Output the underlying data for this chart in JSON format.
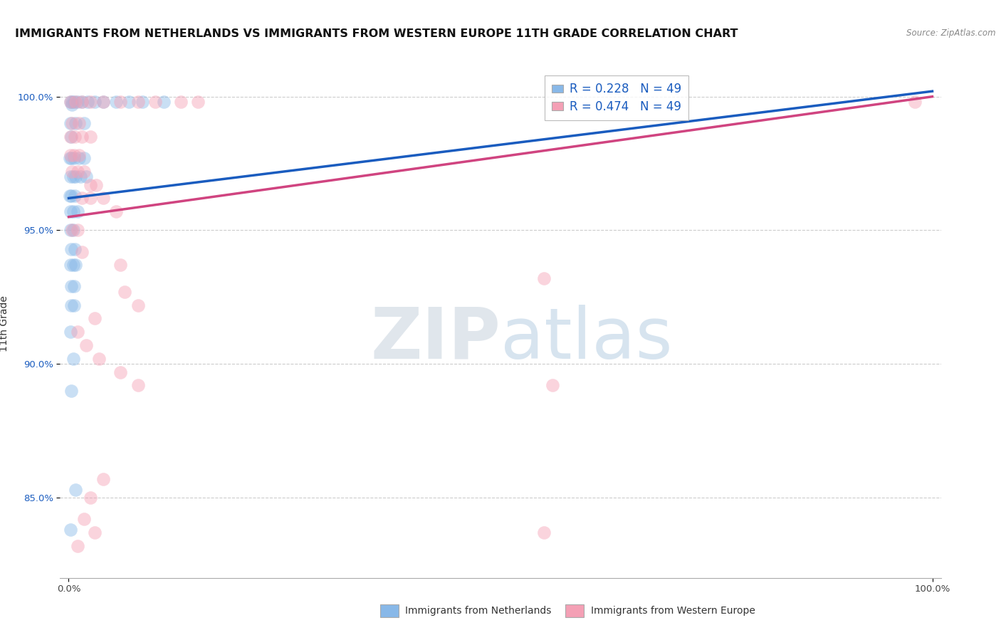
{
  "title": "IMMIGRANTS FROM NETHERLANDS VS IMMIGRANTS FROM WESTERN EUROPE 11TH GRADE CORRELATION CHART",
  "source_text": "Source: ZipAtlas.com",
  "ylabel": "11th Grade",
  "xlim": [
    -0.01,
    1.01
  ],
  "ylim": [
    0.82,
    1.01
  ],
  "x_ticks": [
    0.0,
    1.0
  ],
  "x_tick_labels": [
    "0.0%",
    "100.0%"
  ],
  "y_ticks": [
    0.85,
    0.9,
    0.95,
    1.0
  ],
  "y_tick_labels": [
    "85.0%",
    "90.0%",
    "95.0%",
    "100.0%"
  ],
  "legend_blue_label": "Immigrants from Netherlands",
  "legend_pink_label": "Immigrants from Western Europe",
  "R_blue": 0.228,
  "R_pink": 0.474,
  "N": 49,
  "blue_color": "#88b8e8",
  "pink_color": "#f4a0b5",
  "blue_line_color": "#1a5cbf",
  "pink_line_color": "#d04480",
  "blue_scatter": [
    [
      0.002,
      0.998
    ],
    [
      0.004,
      0.998
    ],
    [
      0.006,
      0.998
    ],
    [
      0.01,
      0.998
    ],
    [
      0.015,
      0.998
    ],
    [
      0.022,
      0.998
    ],
    [
      0.03,
      0.998
    ],
    [
      0.04,
      0.998
    ],
    [
      0.055,
      0.998
    ],
    [
      0.07,
      0.998
    ],
    [
      0.085,
      0.998
    ],
    [
      0.11,
      0.998
    ],
    [
      0.002,
      0.99
    ],
    [
      0.008,
      0.99
    ],
    [
      0.018,
      0.99
    ],
    [
      0.001,
      0.977
    ],
    [
      0.003,
      0.977
    ],
    [
      0.006,
      0.977
    ],
    [
      0.012,
      0.977
    ],
    [
      0.018,
      0.977
    ],
    [
      0.002,
      0.97
    ],
    [
      0.005,
      0.97
    ],
    [
      0.008,
      0.97
    ],
    [
      0.014,
      0.97
    ],
    [
      0.02,
      0.97
    ],
    [
      0.001,
      0.963
    ],
    [
      0.003,
      0.963
    ],
    [
      0.007,
      0.963
    ],
    [
      0.002,
      0.957
    ],
    [
      0.005,
      0.957
    ],
    [
      0.01,
      0.957
    ],
    [
      0.002,
      0.95
    ],
    [
      0.005,
      0.95
    ],
    [
      0.003,
      0.943
    ],
    [
      0.007,
      0.943
    ],
    [
      0.002,
      0.937
    ],
    [
      0.005,
      0.937
    ],
    [
      0.008,
      0.937
    ],
    [
      0.003,
      0.929
    ],
    [
      0.006,
      0.929
    ],
    [
      0.003,
      0.922
    ],
    [
      0.006,
      0.922
    ],
    [
      0.002,
      0.912
    ],
    [
      0.005,
      0.902
    ],
    [
      0.003,
      0.89
    ],
    [
      0.008,
      0.853
    ],
    [
      0.002,
      0.838
    ],
    [
      0.004,
      0.997
    ],
    [
      0.003,
      0.985
    ]
  ],
  "pink_scatter": [
    [
      0.002,
      0.998
    ],
    [
      0.008,
      0.998
    ],
    [
      0.015,
      0.998
    ],
    [
      0.025,
      0.998
    ],
    [
      0.04,
      0.998
    ],
    [
      0.06,
      0.998
    ],
    [
      0.08,
      0.998
    ],
    [
      0.1,
      0.998
    ],
    [
      0.13,
      0.998
    ],
    [
      0.15,
      0.998
    ],
    [
      0.98,
      0.998
    ],
    [
      0.004,
      0.99
    ],
    [
      0.012,
      0.99
    ],
    [
      0.002,
      0.985
    ],
    [
      0.007,
      0.985
    ],
    [
      0.015,
      0.985
    ],
    [
      0.025,
      0.985
    ],
    [
      0.002,
      0.978
    ],
    [
      0.006,
      0.978
    ],
    [
      0.012,
      0.978
    ],
    [
      0.004,
      0.972
    ],
    [
      0.01,
      0.972
    ],
    [
      0.018,
      0.972
    ],
    [
      0.025,
      0.967
    ],
    [
      0.032,
      0.967
    ],
    [
      0.015,
      0.962
    ],
    [
      0.025,
      0.962
    ],
    [
      0.04,
      0.962
    ],
    [
      0.055,
      0.957
    ],
    [
      0.004,
      0.95
    ],
    [
      0.01,
      0.95
    ],
    [
      0.015,
      0.942
    ],
    [
      0.06,
      0.937
    ],
    [
      0.55,
      0.932
    ],
    [
      0.065,
      0.927
    ],
    [
      0.08,
      0.922
    ],
    [
      0.03,
      0.917
    ],
    [
      0.01,
      0.912
    ],
    [
      0.02,
      0.907
    ],
    [
      0.035,
      0.902
    ],
    [
      0.06,
      0.897
    ],
    [
      0.08,
      0.892
    ],
    [
      0.56,
      0.892
    ],
    [
      0.04,
      0.857
    ],
    [
      0.025,
      0.85
    ],
    [
      0.018,
      0.842
    ],
    [
      0.03,
      0.837
    ],
    [
      0.55,
      0.837
    ],
    [
      0.01,
      0.832
    ]
  ],
  "blue_line": [
    [
      0.0,
      0.962
    ],
    [
      1.0,
      1.002
    ]
  ],
  "pink_line": [
    [
      0.0,
      0.955
    ],
    [
      1.0,
      1.0
    ]
  ],
  "watermark_zip": "ZIP",
  "watermark_atlas": "atlas",
  "background_color": "#ffffff",
  "grid_color": "#cccccc",
  "title_fontsize": 11.5,
  "tick_fontsize": 9.5
}
